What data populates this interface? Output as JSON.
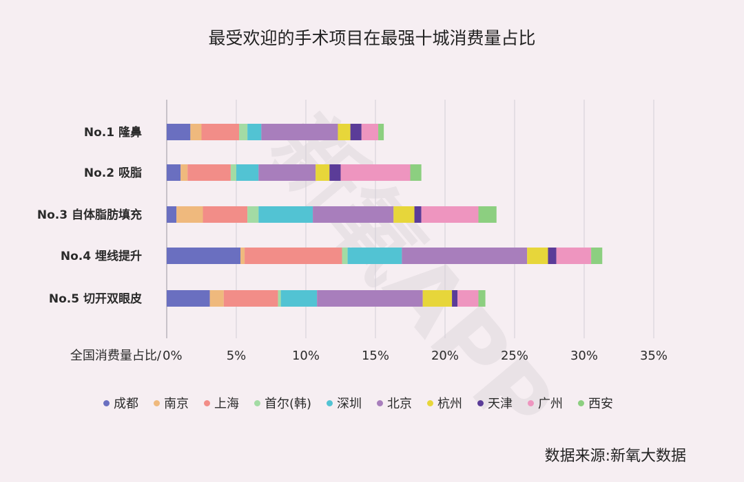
{
  "watermark": "新氧APP",
  "source": "数据来源:新氧大数据",
  "chart_data": {
    "type": "bar",
    "orientation": "horizontal",
    "stacked": true,
    "title": "最受欢迎的手术项目在最强十城消费量占比",
    "xlabel": "全国消费量占比/",
    "xlim": [
      0,
      35
    ],
    "xticks": [
      "0%",
      "5%",
      "10%",
      "15%",
      "20%",
      "25%",
      "30%",
      "35%"
    ],
    "grid": "vertical",
    "legend_position": "bottom",
    "categories": [
      "No.1 隆鼻",
      "No.2 吸脂",
      "No.3 自体脂肪填充",
      "No.4 埋线提升",
      "No.5 切开双眼皮"
    ],
    "series": [
      {
        "name": "成都",
        "color": "#6a6fc0",
        "values": [
          1.7,
          1.0,
          0.7,
          5.3,
          3.1
        ]
      },
      {
        "name": "南京",
        "color": "#efb97d",
        "values": [
          0.8,
          0.5,
          1.9,
          0.3,
          1.0
        ]
      },
      {
        "name": "上海",
        "color": "#f28d88",
        "values": [
          2.7,
          3.1,
          3.2,
          7.0,
          3.9
        ]
      },
      {
        "name": "首尔(韩)",
        "color": "#a3dba4",
        "values": [
          0.6,
          0.4,
          0.8,
          0.4,
          0.2
        ]
      },
      {
        "name": "深圳",
        "color": "#52c3d3",
        "values": [
          1.0,
          1.6,
          3.9,
          3.9,
          2.6
        ]
      },
      {
        "name": "北京",
        "color": "#a87ebc",
        "values": [
          5.5,
          4.1,
          5.8,
          9.0,
          7.6
        ]
      },
      {
        "name": "杭州",
        "color": "#e7d63a",
        "values": [
          0.9,
          1.0,
          1.5,
          1.5,
          2.1
        ]
      },
      {
        "name": "天津",
        "color": "#5b3c98",
        "values": [
          0.8,
          0.8,
          0.5,
          0.6,
          0.4
        ]
      },
      {
        "name": "广州",
        "color": "#ee95bf",
        "values": [
          1.2,
          5.0,
          4.1,
          2.5,
          1.5
        ]
      },
      {
        "name": "西安",
        "color": "#8ccf80",
        "values": [
          0.4,
          0.8,
          1.3,
          0.8,
          0.5
        ]
      }
    ]
  }
}
